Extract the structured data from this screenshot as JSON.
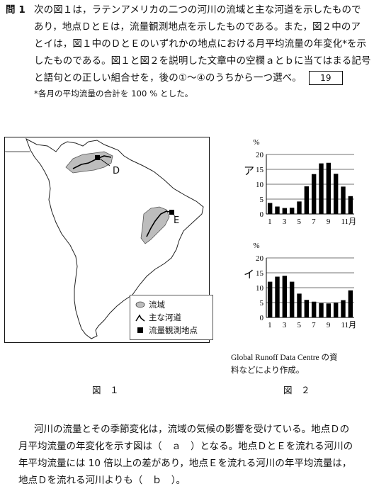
{
  "question": {
    "number": "問 1",
    "lines": [
      "次の図１は，ラテンアメリカの二つの河川の流域と主な河道を示したもので",
      "あり，地点ＤとＥは，流量観測地点を示したものである。また，図２中のア",
      "とイは，図１中のＤとＥのいずれかの地点における月平均流量の年変化*を示",
      "したものである。図１と図２を説明した文章中の空欄ａとｂに当てはまる記号",
      "と語句との正しい組合せを，後の①～④のうちから一つ選べ。"
    ],
    "answer_number": "19",
    "footnote": "*各月の平均流量の合計を 100 % とした。"
  },
  "map": {
    "label_d": "D",
    "label_e": "E",
    "legend": {
      "basin": "流域",
      "river": "主な河道",
      "station": "流量観測地点"
    },
    "caption": "図　１"
  },
  "figure2": {
    "caption": "図　２",
    "source": [
      "Global Runoff Data Centre の資",
      "料などにより作成。"
    ]
  },
  "chart_data": [
    {
      "type": "bar",
      "title": "ア",
      "ylabel": "%",
      "xlabel": "月",
      "x_tick_labels": [
        "1",
        "3",
        "5",
        "7",
        "9",
        "11月"
      ],
      "categories": [
        "1",
        "2",
        "3",
        "4",
        "5",
        "6",
        "7",
        "8",
        "9",
        "10",
        "11",
        "12"
      ],
      "values": [
        3.7,
        2.5,
        2.0,
        2.1,
        4.2,
        9.3,
        13.4,
        17.0,
        17.2,
        13.5,
        9.2,
        6.0
      ],
      "ylim": [
        0,
        20
      ],
      "yticks": [
        0,
        5,
        10,
        15,
        20
      ]
    },
    {
      "type": "bar",
      "title": "イ",
      "ylabel": "%",
      "xlabel": "月",
      "x_tick_labels": [
        "1",
        "3",
        "5",
        "7",
        "9",
        "11月"
      ],
      "categories": [
        "1",
        "2",
        "3",
        "4",
        "5",
        "6",
        "7",
        "8",
        "9",
        "10",
        "11",
        "12"
      ],
      "values": [
        12.0,
        13.7,
        14.0,
        12.0,
        8.0,
        5.9,
        5.3,
        4.8,
        4.7,
        4.9,
        5.8,
        9.1
      ],
      "ylim": [
        0,
        20
      ],
      "yticks": [
        0,
        5,
        10,
        15,
        20
      ]
    }
  ],
  "passage": {
    "lines": [
      "河川の流量とその季節変化は，流域の気候の影響を受けている。地点Ｄの",
      "月平均流量の年変化を示す図は（　ａ　）となる。地点ＤとＥを流れる河川の",
      "年平均流量には 10 倍以上の差があり，地点Ｅを流れる河川の年平均流量は，",
      "地点Ｄを流れる河川よりも（　ｂ　）。"
    ]
  }
}
